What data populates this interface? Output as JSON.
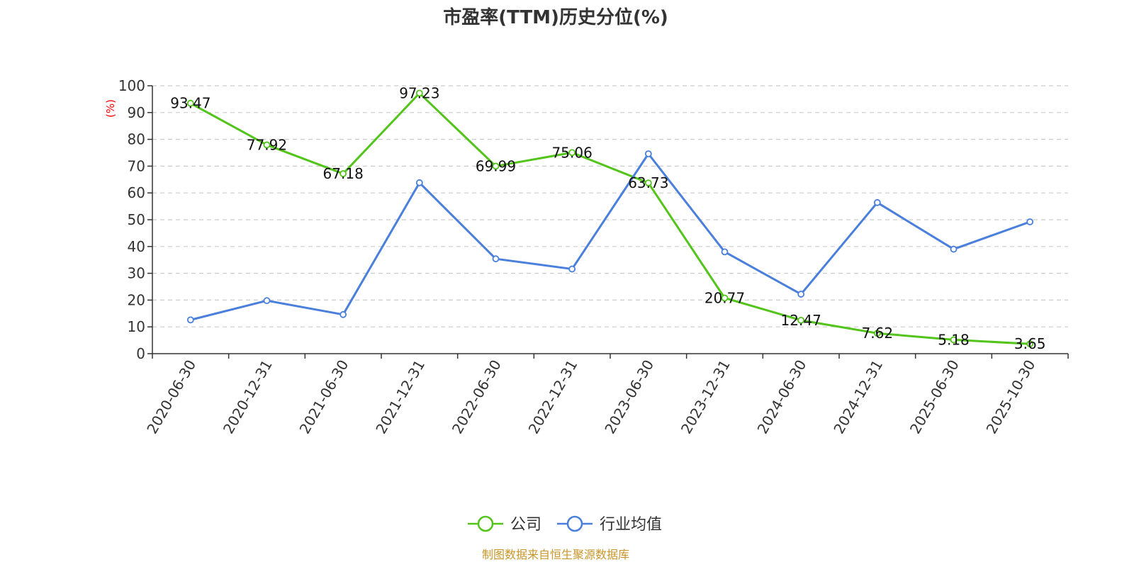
{
  "chart_data": {
    "type": "line",
    "title": "市盈率(TTM)历史分位(%)",
    "ylabel": "(%)",
    "ylim": [
      0,
      100
    ],
    "yticks": [
      0,
      10,
      20,
      30,
      40,
      50,
      60,
      70,
      80,
      90,
      100
    ],
    "grid": true,
    "legend_position": "bottom",
    "categories": [
      "2020-06-30",
      "2020-12-31",
      "2021-06-30",
      "2021-12-31",
      "2022-06-30",
      "2022-12-31",
      "2023-06-30",
      "2023-12-31",
      "2024-06-30",
      "2024-12-31",
      "2025-06-30",
      "2025-10-30"
    ],
    "series": [
      {
        "name": "公司",
        "color": "#52c41a",
        "values": [
          93.47,
          77.92,
          67.18,
          97.23,
          69.99,
          75.06,
          63.73,
          20.77,
          12.47,
          7.62,
          5.18,
          3.65
        ],
        "labels": [
          "93.47",
          "77.92",
          "67.18",
          "97.23",
          "69.99",
          "75.06",
          "63.73",
          "20.77",
          "12.47",
          "7.62",
          "5.18",
          "3.65"
        ]
      },
      {
        "name": "行业均值",
        "color": "#4a7fdc",
        "values": [
          12.6,
          19.8,
          14.6,
          63.8,
          35.4,
          31.6,
          74.6,
          38.0,
          22.2,
          56.4,
          39.0,
          49.2
        ]
      }
    ],
    "source": "制图数据来自恒生聚源数据库",
    "source_color": "#c8962a",
    "ylabel_color": "#ff0000",
    "axis_color": "#333333",
    "grid_color": "#cccccc"
  }
}
